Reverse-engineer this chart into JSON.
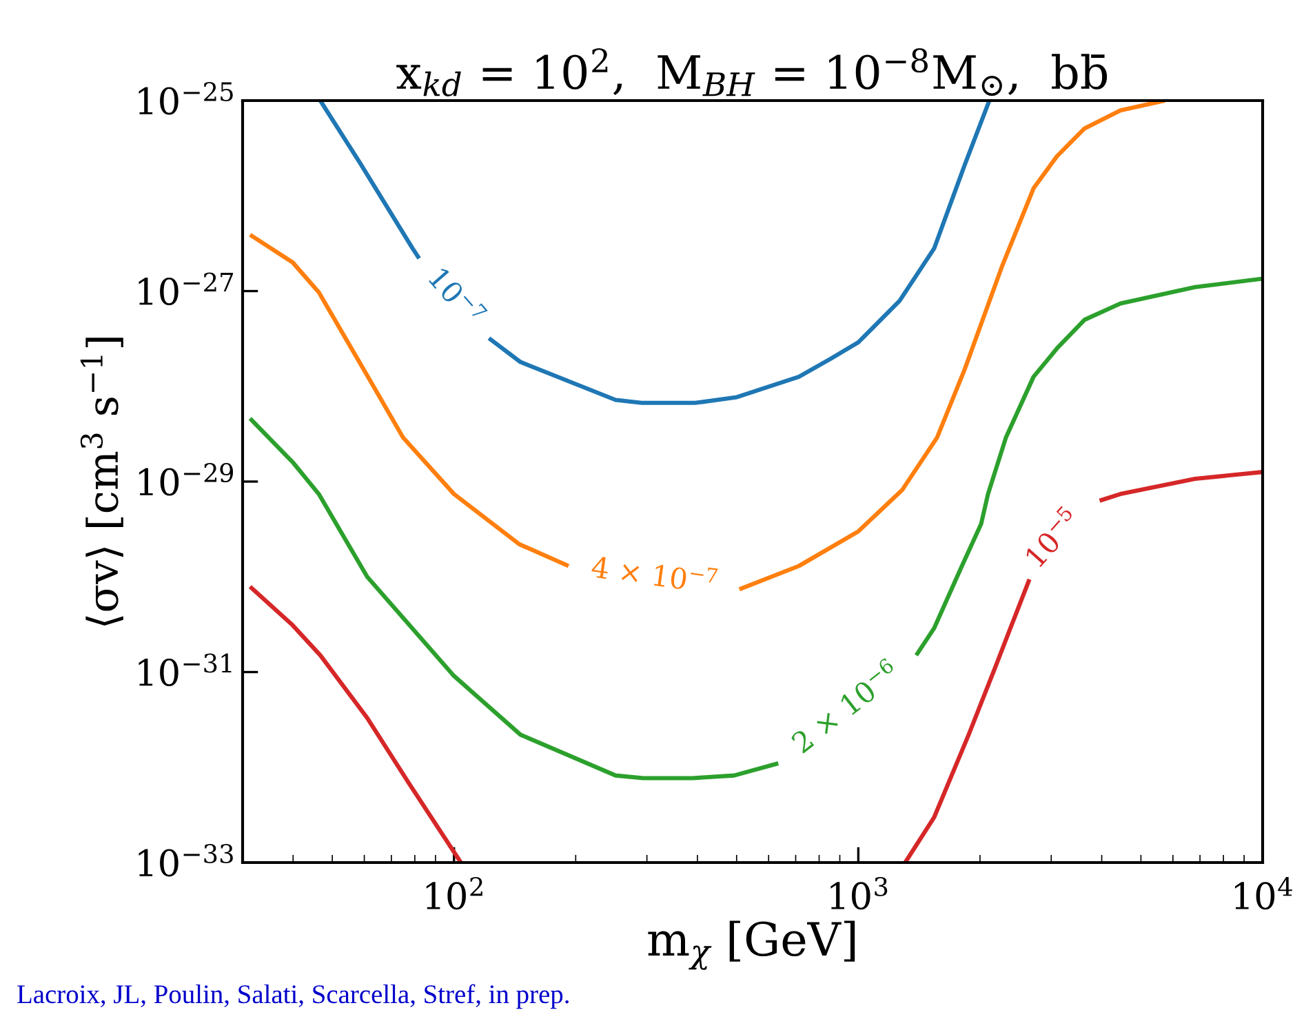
{
  "chart_data": {
    "type": "line",
    "title": "x$_{kd}$ = 10$^{2}$,  M$_{BH}$ = 10$^{−8}$M$_{⊙}$,  bb̄",
    "xlabel": "m$_{χ}$ [GeV]",
    "ylabel": "⟨σv⟩ [cm$^{3}$ s$^{−1}$]",
    "log": "xy",
    "xlim": [
      30,
      10000
    ],
    "ylim": [
      1e-33,
      1e-25
    ],
    "xticks": [
      {
        "value": 100,
        "label": "10$^{2}$"
      },
      {
        "value": 1000,
        "label": "10$^{3}$"
      },
      {
        "value": 10000,
        "label": "10$^{4}$"
      }
    ],
    "yticks": [
      {
        "value": 1e-33,
        "label": "10$^{−33}$"
      },
      {
        "value": 1e-31,
        "label": "10$^{−31}$"
      },
      {
        "value": 1e-29,
        "label": "10$^{−29}$"
      },
      {
        "value": 1e-27,
        "label": "10$^{−27}$"
      },
      {
        "value": 1e-25,
        "label": "10$^{−25}$"
      }
    ],
    "series": [
      {
        "name": "10$^{−7}$",
        "color": "#1f77b4",
        "x": [
          46.7,
          58.6,
          79,
          82,
          100,
          122,
          146,
          251,
          291,
          395,
          501,
          713,
          855,
          1000,
          1265,
          1540,
          1832,
          2109
        ],
        "values": [
          1e-25,
          2.2e-26,
          2.8e-27,
          2.2e-27,
          null,
          3.2e-28,
          1.8e-28,
          7.2e-29,
          6.7e-29,
          6.7e-29,
          7.7e-29,
          1.26e-28,
          1.95e-28,
          2.9e-28,
          7.9e-28,
          2.8e-27,
          2.1e-26,
          1e-25
        ]
      },
      {
        "name": "4 × 10$^{−7}$",
        "color": "#ff7f0e",
        "x": [
          31.3,
          39.9,
          46.3,
          62.4,
          74.8,
          100,
          145,
          192,
          313,
          508,
          713,
          1000,
          1285,
          1566,
          1832,
          2265,
          2713,
          3099,
          3627,
          4449,
          5727
        ],
        "values": [
          3.9e-27,
          2e-27,
          9.7e-28,
          1.1e-28,
          2.9e-29,
          7.4e-30,
          2.2e-30,
          1.3e-30,
          null,
          7.4e-31,
          1.3e-30,
          3e-30,
          8.2e-30,
          2.9e-29,
          1.5e-28,
          1.8e-27,
          1.2e-26,
          2.6e-26,
          5.1e-26,
          7.9e-26,
          1e-25
        ]
      },
      {
        "name": "2 × 10$^{−6}$",
        "color": "#2ca02c",
        "x": [
          31.3,
          39.9,
          46.3,
          61.0,
          100,
          146,
          251,
          294,
          389,
          493,
          634,
          940,
          1391,
          1541,
          1789,
          2013,
          2093,
          2318,
          2713,
          3100,
          3628,
          4451,
          6805,
          10000
        ],
        "values": [
          4.6e-29,
          1.6e-29,
          7.4e-30,
          1e-30,
          9.1e-32,
          2.2e-32,
          8.2e-33,
          7.7e-33,
          7.7e-33,
          8.2e-33,
          1.1e-32,
          null,
          1.5e-31,
          2.9e-31,
          1.2e-30,
          3.6e-30,
          7.4e-30,
          2.9e-29,
          1.26e-28,
          2.5e-28,
          5e-28,
          7.4e-28,
          1.1e-27,
          1.35e-27
        ]
      },
      {
        "color": "#d62728",
        "x": [
          31.3,
          39.9,
          46.7,
          61.0,
          77.2,
          104
        ],
        "values": [
          7.9e-31,
          3.1e-31,
          1.5e-31,
          3.3e-32,
          6.9e-33,
          1e-33
        ]
      },
      {
        "name": "10$^{−5}$",
        "color": "#d62728",
        "x": [
          1306,
          1541,
          1875,
          2177,
          2355,
          2650,
          3055,
          3953,
          4449,
          6805,
          10000
        ],
        "values": [
          1e-33,
          3e-33,
          2.2e-32,
          1.1e-31,
          2.6e-31,
          9.4e-31,
          null,
          6.3e-30,
          7.4e-30,
          1.07e-29,
          1.26e-29
        ]
      }
    ],
    "annotations": [
      "Lacroix, JL, Poulin, Salati, Scarcella, Stref, in prep."
    ]
  }
}
